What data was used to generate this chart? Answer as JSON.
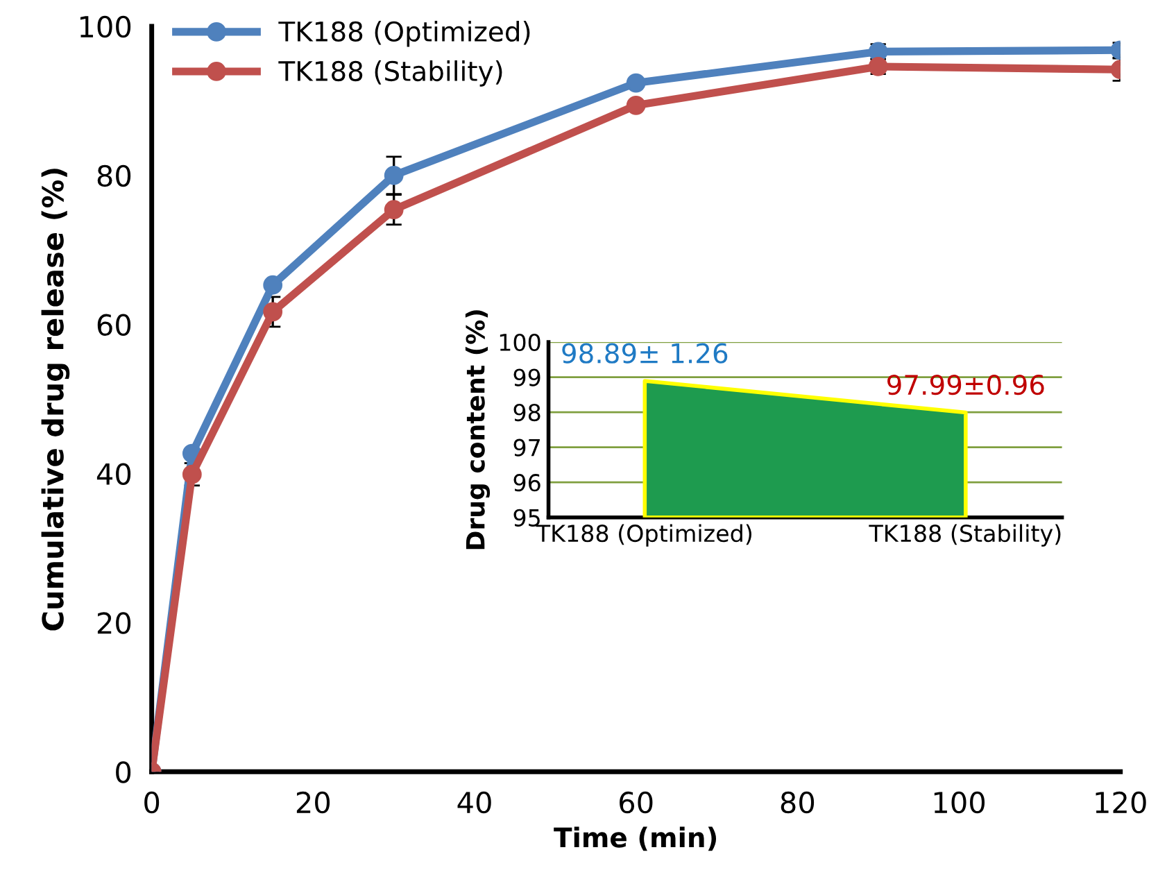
{
  "chart_data": [
    {
      "type": "line",
      "xlabel": "Time (min)",
      "ylabel": "Cumulative drug release (%)",
      "x": [
        0,
        5,
        15,
        30,
        60,
        90,
        120
      ],
      "xlim": [
        0,
        120
      ],
      "xticks": [
        0,
        20,
        40,
        60,
        80,
        100,
        120
      ],
      "ylim": [
        0,
        100
      ],
      "yticks": [
        0,
        20,
        40,
        60,
        80,
        100
      ],
      "grid": false,
      "legend": "top left",
      "marker": "circle",
      "line_style": "solid",
      "series": [
        {
          "name": "TK188 (Optimized)",
          "color": "#4f81bd",
          "values": [
            0,
            42.7,
            65.3,
            80,
            92.4,
            96.6,
            96.8
          ],
          "errors": [
            null,
            null,
            null,
            2.5,
            null,
            1,
            1
          ]
        },
        {
          "name": "TK188 (Stability)",
          "color": "#c0504d",
          "values": [
            0,
            39.9,
            61.7,
            75.4,
            89.4,
            94.6,
            94.2
          ],
          "errors": [
            null,
            1.5,
            2,
            2,
            null,
            1,
            1.5
          ]
        }
      ]
    },
    {
      "type": "area",
      "ylabel": "Drug content (%)",
      "categories": [
        "TK188 (Optimized)",
        "TK188 (Stability)"
      ],
      "ylim": [
        95,
        100
      ],
      "yticks": [
        95,
        96,
        97,
        98,
        99,
        100
      ],
      "grid": "y",
      "color": "#1e9b4f",
      "values": [
        98.89,
        97.99
      ],
      "value_labels": [
        "98.89± 1.26",
        "97.99±0.96"
      ]
    }
  ]
}
